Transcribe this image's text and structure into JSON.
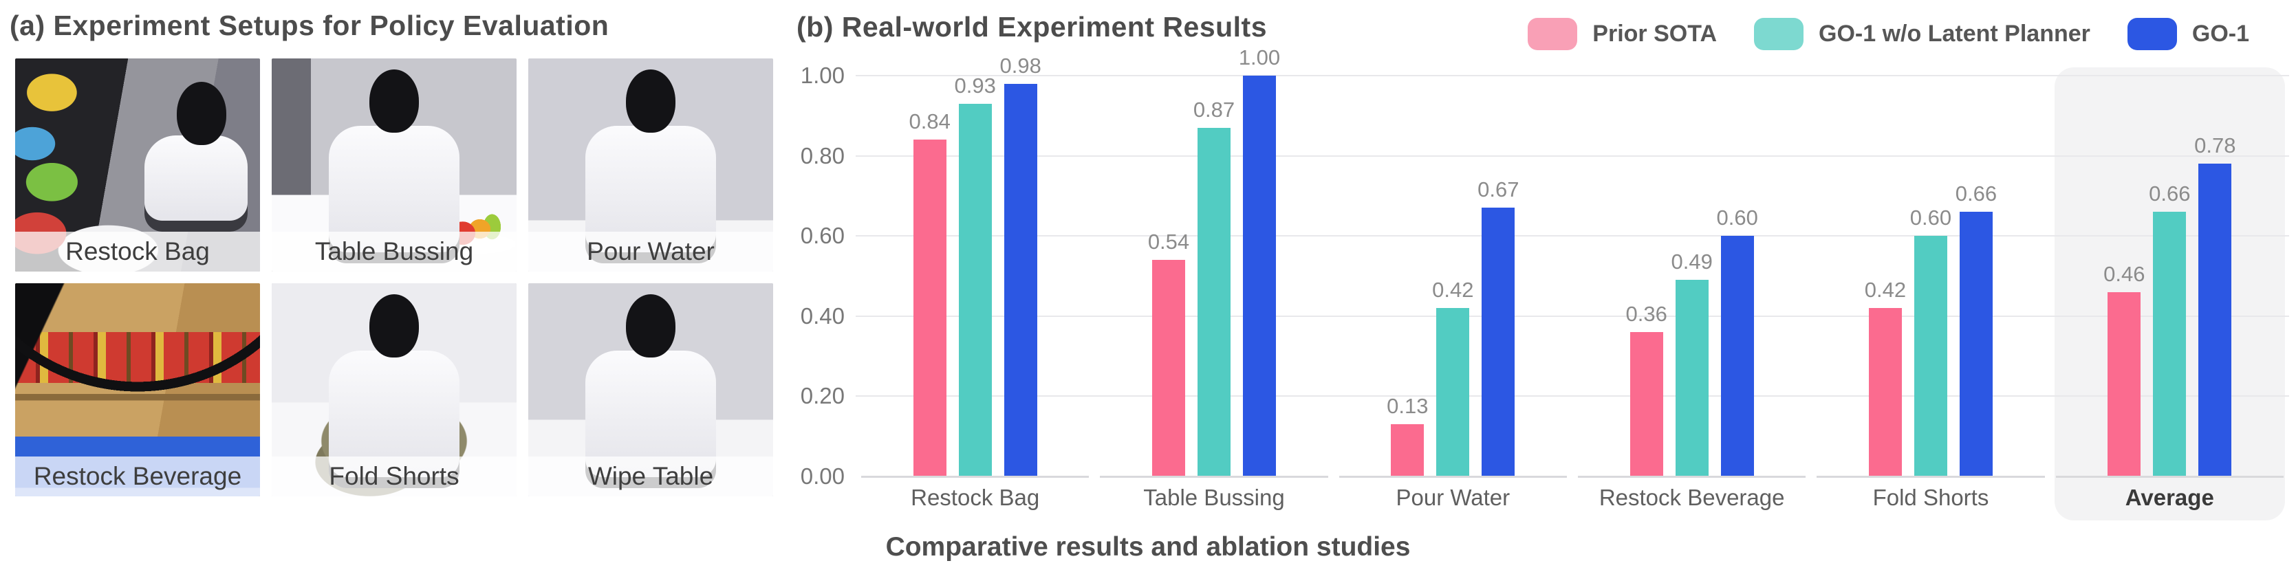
{
  "panel_a": {
    "title": "(a) Experiment Setups for Policy Evaluation",
    "photos": [
      {
        "label": "Restock Bag",
        "scene": "restock-bag"
      },
      {
        "label": "Table Bussing",
        "scene": "table-bussing"
      },
      {
        "label": "Pour Water",
        "scene": "pour-water"
      },
      {
        "label": "Restock Beverage",
        "scene": "restock-beverage"
      },
      {
        "label": "Fold Shorts",
        "scene": "fold-shorts"
      },
      {
        "label": "Wipe Table",
        "scene": "wipe-table"
      }
    ]
  },
  "panel_b": {
    "title": "(b) Real-world Experiment Results",
    "caption": "Comparative results and ablation studies"
  },
  "chart_data": {
    "type": "bar",
    "title": "(b) Real-world Experiment Results",
    "categories": [
      "Restock Bag",
      "Table Bussing",
      "Pour Water",
      "Restock Beverage",
      "Fold Shorts",
      "Average"
    ],
    "series": [
      {
        "name": "Prior SOTA",
        "color": "#fb6b8f",
        "legend_color": "#f9a0b6",
        "values": [
          0.84,
          0.54,
          0.13,
          0.36,
          0.42,
          0.46
        ]
      },
      {
        "name": "GO-1 w/o Latent Planner",
        "color": "#52ccc2",
        "legend_color": "#7dd9d0",
        "values": [
          0.93,
          0.87,
          0.42,
          0.49,
          0.6,
          0.66
        ]
      },
      {
        "name": "GO-1",
        "color": "#2c57e3",
        "legend_color": "#2c57e3",
        "values": [
          0.98,
          1.0,
          0.67,
          0.6,
          0.66,
          0.78
        ]
      }
    ],
    "xlabel": "",
    "ylabel": "",
    "ylim": [
      0,
      1
    ],
    "yticks": [
      "0.00",
      "0.20",
      "0.40",
      "0.60",
      "0.80",
      "1.00"
    ],
    "grid": true,
    "legend_position": "top-right",
    "highlight_category": "Average",
    "highlight_bg": "#f3f3f4",
    "value_label_color": "#8b8b8b"
  }
}
